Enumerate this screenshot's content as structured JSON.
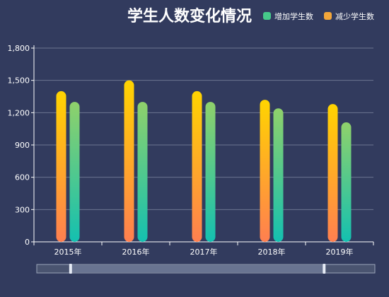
{
  "chart_data": {
    "type": "bar",
    "title": "学生人数变化情况",
    "categories": [
      "2015年",
      "2016年",
      "2017年",
      "2018年",
      "2019年"
    ],
    "series": [
      {
        "name": "减少学生数",
        "values": [
          1400,
          1500,
          1400,
          1320,
          1280
        ]
      },
      {
        "name": "增加学生数",
        "values": [
          1300,
          1300,
          1300,
          1240,
          1110
        ]
      }
    ],
    "ylim": [
      0,
      1800
    ],
    "yticks": [
      0,
      300,
      600,
      900,
      1200,
      1500,
      1800
    ],
    "ytick_labels": [
      "0",
      "300",
      "600",
      "900",
      "1,200",
      "1,500",
      "1,800"
    ],
    "grid": true,
    "legend_placement": "top-right",
    "legend_entries": [
      "增加学生数",
      "减少学生数"
    ],
    "colors": {
      "background": "#323b5e",
      "title": "#ffffff",
      "axis_text": "#ffffff",
      "grid": "#6c7590",
      "axis_line": "#ffffff",
      "legend_increase": "#46c98a",
      "legend_decrease": "#f3a63a",
      "bar_decrease_top": "#ffd400",
      "bar_decrease_bottom": "#ff7f50",
      "bar_increase_top": "#8fd16b",
      "bar_increase_bottom": "#14c0b0",
      "slider_bg": "#4a5470",
      "slider_fill": "#6f7a96",
      "slider_border": "#9aa3b8",
      "slider_handle": "#e6ebf5"
    },
    "zoom_range": [
      0.1,
      0.85
    ]
  }
}
